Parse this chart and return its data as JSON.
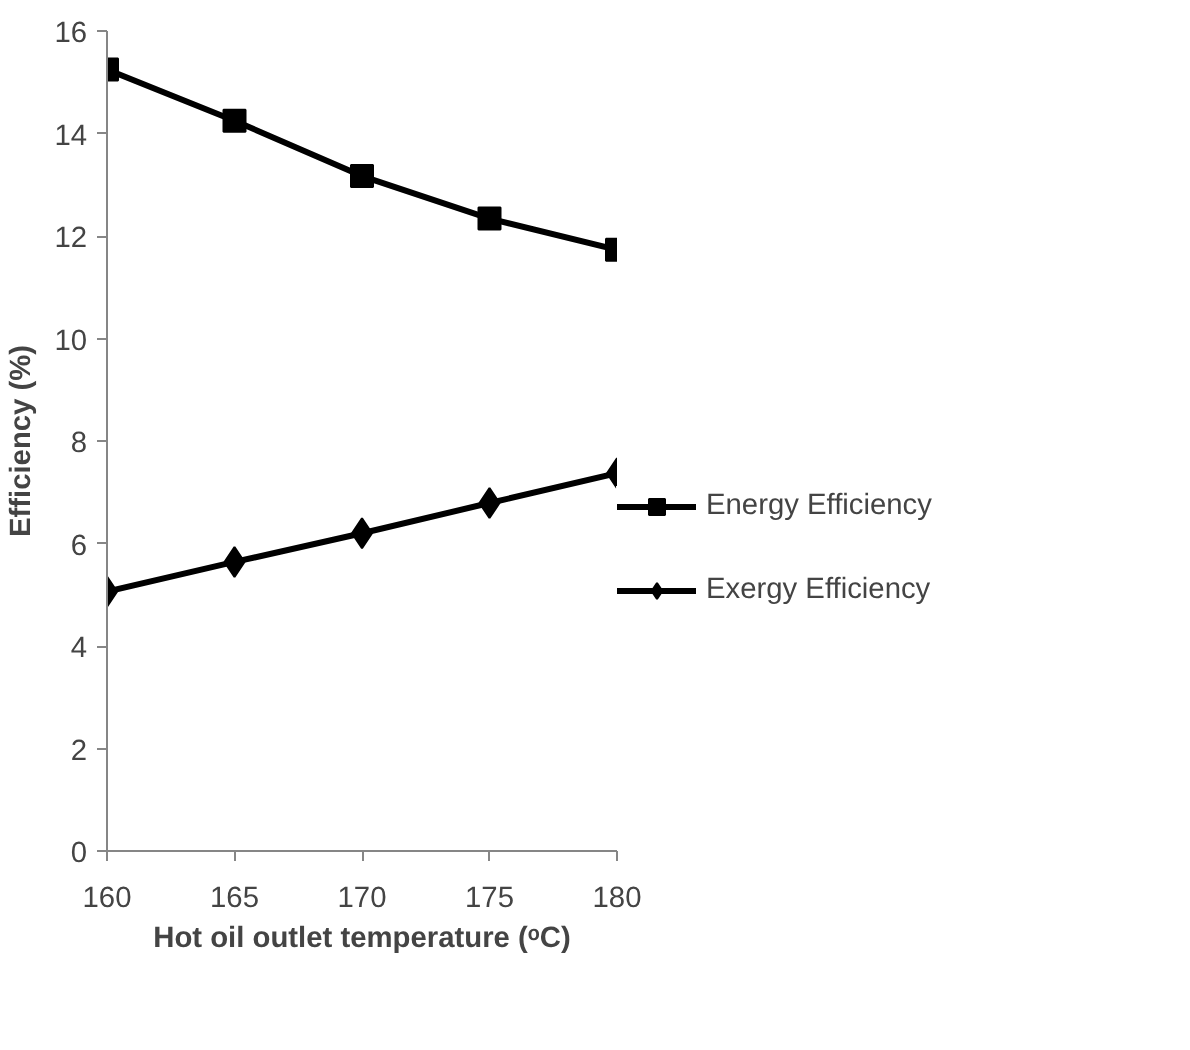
{
  "chart_data": {
    "type": "line",
    "xlabel": "Hot oil outlet temperature (ᵒC)",
    "ylabel": "Efficiency (%)",
    "x": [
      160,
      165,
      170,
      175,
      180
    ],
    "series": [
      {
        "name": "Energy Efficiency",
        "color": "#000000",
        "marker": "square",
        "values": [
          15.25,
          14.25,
          13.17,
          12.34,
          11.73
        ]
      },
      {
        "name": "Exergy Efficiency",
        "color": "#000000",
        "marker": "diamond",
        "values": [
          5.06,
          5.64,
          6.2,
          6.79,
          7.37
        ]
      }
    ],
    "xlim": [
      160,
      180
    ],
    "xticks": [
      160,
      165,
      170,
      175,
      180
    ],
    "ylim": [
      0,
      16
    ],
    "yticks": [
      0,
      2,
      4,
      6,
      8,
      10,
      12,
      14,
      16
    ],
    "grid": false,
    "legend": "right",
    "line_style": "solid"
  }
}
